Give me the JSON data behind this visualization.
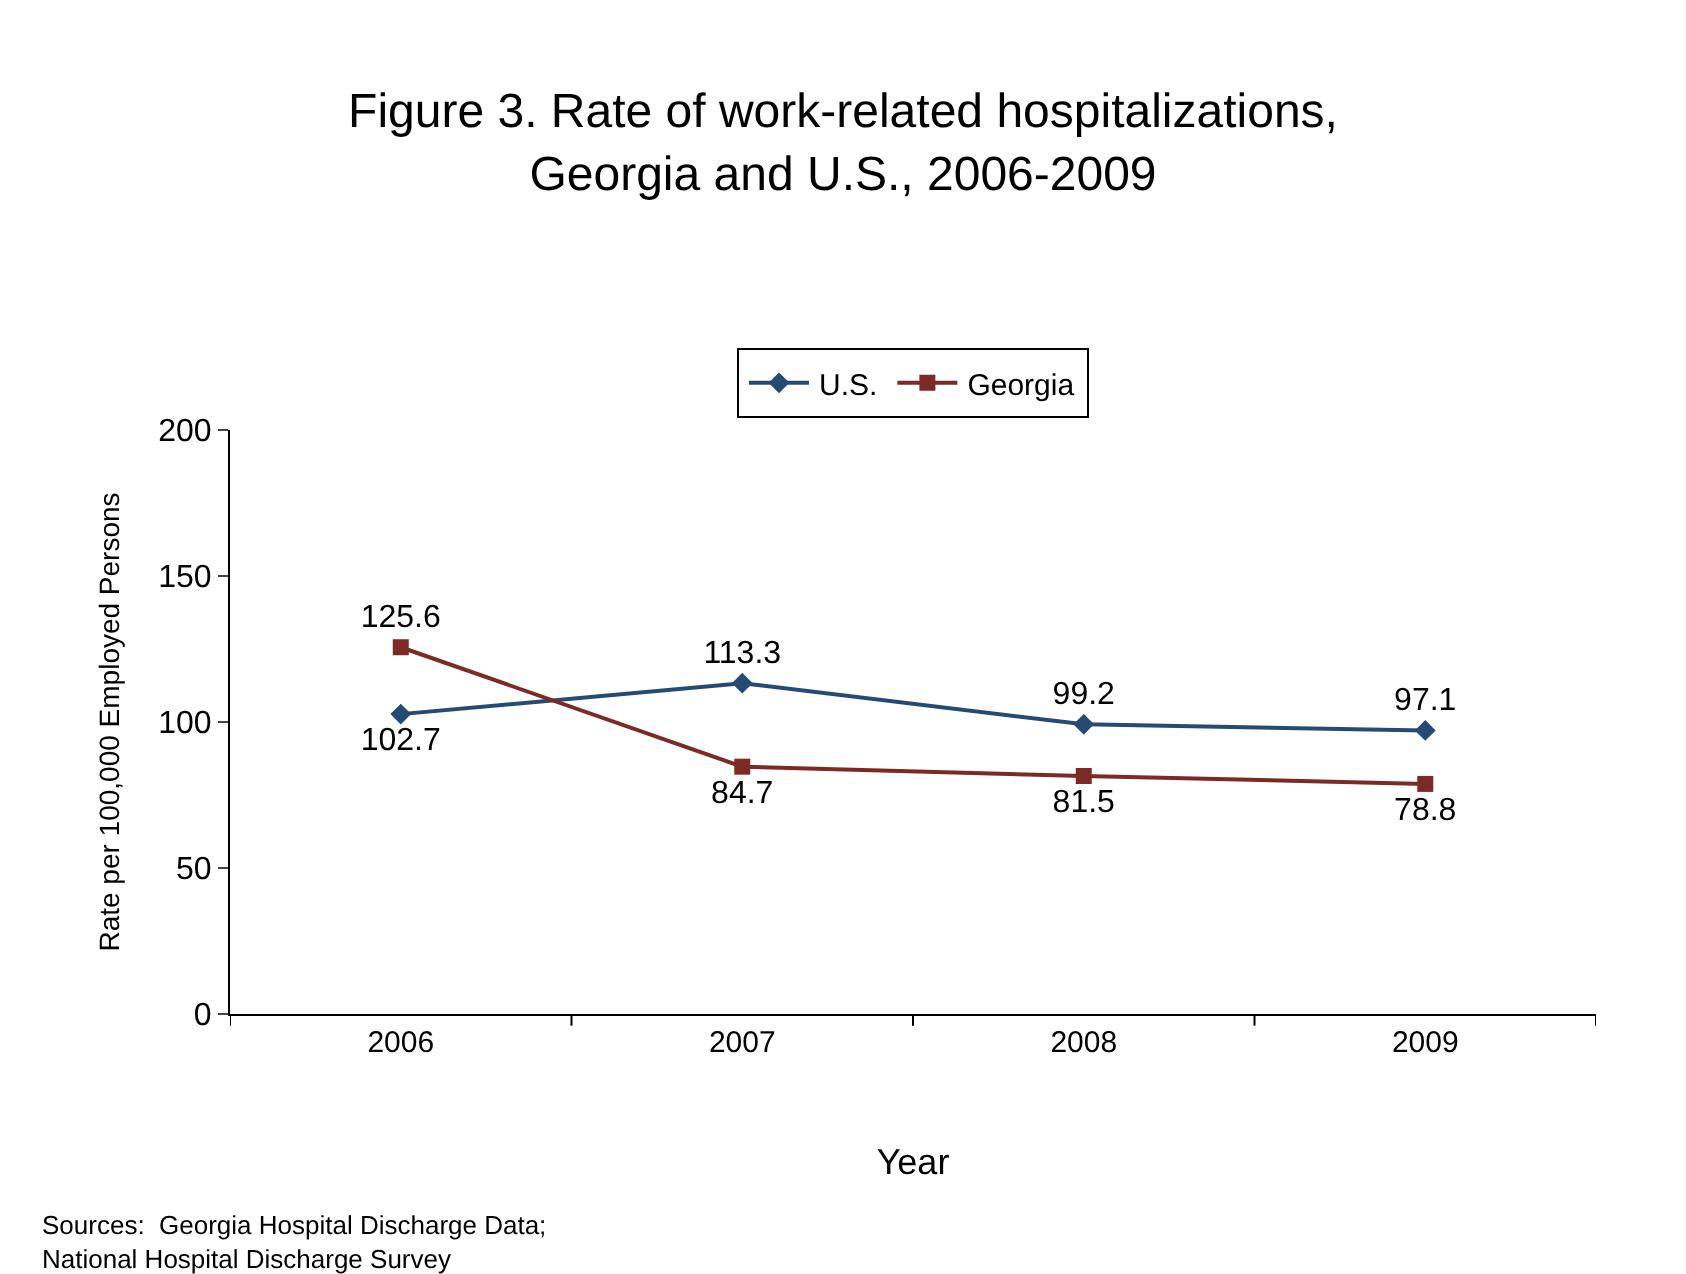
{
  "chart_data": {
    "type": "line",
    "title": "Figure 3. Rate of work-related hospitalizations,\nGeorgia and U.S., 2006-2009",
    "xlabel": "Year",
    "ylabel": "Rate per 100,000 Employed Persons",
    "categories": [
      "2006",
      "2007",
      "2008",
      "2009"
    ],
    "series": [
      {
        "name": "U.S.",
        "color": "#254b75",
        "marker": "diamond",
        "values": [
          102.7,
          113.3,
          99.2,
          97.1
        ]
      },
      {
        "name": "Georgia",
        "color": "#7b2a26",
        "marker": "square",
        "values": [
          125.6,
          84.7,
          81.5,
          78.8
        ]
      }
    ],
    "ylim": [
      0,
      200
    ],
    "yticks": [
      0,
      50,
      100,
      150,
      200
    ],
    "data_labels": true,
    "legend": "top",
    "annotations": [
      "Sources:  Georgia Hospital Discharge Data;\nNational Hospital Discharge Survey"
    ]
  }
}
